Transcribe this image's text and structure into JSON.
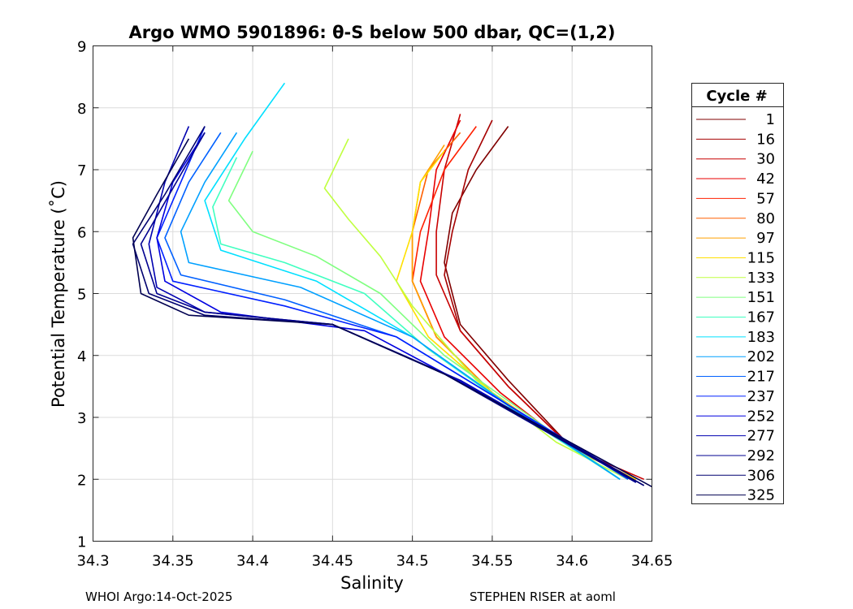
{
  "chart_data": {
    "type": "line",
    "title": "Argo WMO 5901896: θ-S below 500 dbar,  QC=(1,2)",
    "xlabel": "Salinity",
    "ylabel": "Potential Temperature (˚C)",
    "xlim": [
      34.3,
      34.65
    ],
    "ylim": [
      1,
      9
    ],
    "xticks": [
      34.3,
      34.35,
      34.4,
      34.45,
      34.5,
      34.55,
      34.6,
      34.65
    ],
    "xtick_labels": [
      "34.3",
      "34.35",
      "34.4",
      "34.45",
      "34.5",
      "34.55",
      "34.6",
      "34.65"
    ],
    "yticks": [
      1,
      2,
      3,
      4,
      5,
      6,
      7,
      8,
      9
    ],
    "ytick_labels": [
      "1",
      "2",
      "3",
      "4",
      "5",
      "6",
      "7",
      "8",
      "9"
    ],
    "grid": true,
    "legend_title": "Cycle #",
    "legend_placement": "outside-right",
    "series": [
      {
        "name": "1",
        "color": "#800000",
        "x": [
          34.56,
          34.54,
          34.525,
          34.52,
          34.53,
          34.56,
          34.6,
          34.64
        ],
        "y": [
          7.7,
          7.0,
          6.3,
          5.5,
          4.5,
          3.6,
          2.5,
          2.0
        ]
      },
      {
        "name": "16",
        "color": "#a60000",
        "x": [
          34.55,
          34.535,
          34.525,
          34.52,
          34.53,
          34.56,
          34.6,
          34.64
        ],
        "y": [
          7.8,
          7.0,
          6.0,
          5.3,
          4.4,
          3.5,
          2.5,
          2.0
        ]
      },
      {
        "name": "30",
        "color": "#c80000",
        "x": [
          34.53,
          34.52,
          34.515,
          34.515,
          34.53,
          34.56,
          34.6,
          34.645
        ],
        "y": [
          7.9,
          7.0,
          6.0,
          5.3,
          4.4,
          3.5,
          2.5,
          2.0
        ]
      },
      {
        "name": "42",
        "color": "#e80000",
        "x": [
          34.53,
          34.515,
          34.51,
          34.505,
          34.52,
          34.555,
          34.6,
          34.64
        ],
        "y": [
          7.8,
          7.0,
          6.0,
          5.2,
          4.3,
          3.4,
          2.5,
          2.0
        ]
      },
      {
        "name": "57",
        "color": "#ff2000",
        "x": [
          34.54,
          34.52,
          34.505,
          34.5,
          34.515,
          34.55,
          34.6,
          34.64
        ],
        "y": [
          7.7,
          7.0,
          6.0,
          5.2,
          4.3,
          3.4,
          2.5,
          2.0
        ]
      },
      {
        "name": "80",
        "color": "#ff6000",
        "x": [
          34.53,
          34.51,
          34.5,
          34.5,
          34.515,
          34.55,
          34.6,
          34.64
        ],
        "y": [
          7.6,
          7.0,
          6.0,
          5.2,
          4.3,
          3.4,
          2.5,
          2.0
        ]
      },
      {
        "name": "97",
        "color": "#ffa000",
        "x": [
          34.52,
          34.505,
          34.5,
          34.5,
          34.515,
          34.55,
          34.6,
          34.64
        ],
        "y": [
          7.4,
          6.8,
          6.0,
          5.2,
          4.3,
          3.4,
          2.5,
          2.0
        ]
      },
      {
        "name": "115",
        "color": "#ffe000",
        "x": [
          34.52,
          34.505,
          34.5,
          34.49,
          34.51,
          34.55,
          34.6,
          34.64
        ],
        "y": [
          7.3,
          6.8,
          6.0,
          5.2,
          4.3,
          3.4,
          2.5,
          2.0
        ]
      },
      {
        "name": "133",
        "color": "#c0ff40",
        "x": [
          34.46,
          34.445,
          34.46,
          34.48,
          34.5,
          34.54,
          34.59,
          34.635
        ],
        "y": [
          7.5,
          6.7,
          6.2,
          5.6,
          4.8,
          3.6,
          2.6,
          2.0
        ]
      },
      {
        "name": "151",
        "color": "#80ff80",
        "x": [
          34.4,
          34.385,
          34.4,
          34.44,
          34.48,
          34.52,
          34.58,
          34.63
        ],
        "y": [
          7.3,
          6.5,
          6.0,
          5.6,
          5.0,
          4.0,
          2.9,
          2.0
        ]
      },
      {
        "name": "167",
        "color": "#40ffc0",
        "x": [
          34.39,
          34.375,
          34.38,
          34.42,
          34.47,
          34.51,
          34.57,
          34.63
        ],
        "y": [
          7.2,
          6.4,
          5.8,
          5.5,
          5.0,
          4.1,
          3.0,
          2.0
        ]
      },
      {
        "name": "183",
        "color": "#00e0ff",
        "x": [
          34.42,
          34.395,
          34.37,
          34.38,
          34.44,
          34.5,
          34.56,
          34.63
        ],
        "y": [
          8.4,
          7.5,
          6.5,
          5.7,
          5.2,
          4.3,
          3.2,
          2.0
        ]
      },
      {
        "name": "202",
        "color": "#00a0ff",
        "x": [
          34.39,
          34.37,
          34.355,
          34.36,
          34.43,
          34.5,
          34.56,
          34.63
        ],
        "y": [
          7.6,
          6.8,
          6.0,
          5.5,
          5.1,
          4.3,
          3.2,
          2.0
        ]
      },
      {
        "name": "217",
        "color": "#0060ff",
        "x": [
          34.38,
          34.36,
          34.345,
          34.355,
          34.42,
          34.49,
          34.56,
          34.635
        ],
        "y": [
          7.6,
          6.8,
          5.9,
          5.3,
          4.9,
          4.3,
          3.2,
          2.0
        ]
      },
      {
        "name": "237",
        "color": "#0020ff",
        "x": [
          34.37,
          34.355,
          34.34,
          34.35,
          34.42,
          34.49,
          34.56,
          34.64
        ],
        "y": [
          7.7,
          6.8,
          5.9,
          5.2,
          4.8,
          4.3,
          3.2,
          1.95
        ]
      },
      {
        "name": "252",
        "color": "#0000e0",
        "x": [
          34.37,
          34.35,
          34.34,
          34.345,
          34.38,
          34.47,
          34.55,
          34.64
        ],
        "y": [
          7.6,
          6.8,
          5.9,
          5.2,
          4.7,
          4.4,
          3.3,
          1.95
        ]
      },
      {
        "name": "277",
        "color": "#0000b0",
        "x": [
          34.36,
          34.345,
          34.335,
          34.34,
          34.37,
          34.45,
          34.53,
          34.645
        ],
        "y": [
          7.7,
          6.8,
          5.8,
          5.1,
          4.7,
          4.5,
          3.6,
          1.9
        ]
      },
      {
        "name": "292",
        "color": "#000090",
        "x": [
          34.37,
          34.35,
          34.33,
          34.34,
          34.37,
          34.45,
          34.52,
          34.64
        ],
        "y": [
          7.6,
          6.7,
          5.8,
          5.0,
          4.7,
          4.5,
          3.7,
          1.95
        ]
      },
      {
        "name": "306",
        "color": "#000070",
        "x": [
          34.37,
          34.345,
          34.325,
          34.335,
          34.37,
          34.45,
          34.52,
          34.645
        ],
        "y": [
          7.7,
          6.6,
          5.8,
          5.0,
          4.65,
          4.5,
          3.7,
          1.9
        ]
      },
      {
        "name": "325",
        "color": "#000050",
        "x": [
          34.36,
          34.34,
          34.325,
          34.33,
          34.36,
          34.45,
          34.52,
          34.65
        ],
        "y": [
          7.5,
          6.6,
          5.9,
          5.0,
          4.65,
          4.5,
          3.7,
          1.88
        ]
      }
    ]
  },
  "footer": {
    "left": "WHOI Argo:14-Oct-2025",
    "right": "STEPHEN RISER at aoml"
  }
}
